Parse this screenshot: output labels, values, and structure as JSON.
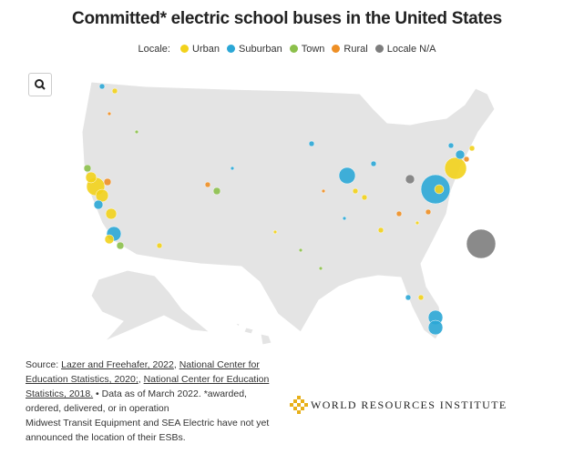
{
  "title": "Committed* electric school buses in the United States",
  "legend": {
    "label": "Locale:",
    "items": [
      {
        "name": "Urban",
        "color": "#f2d21b"
      },
      {
        "name": "Suburban",
        "color": "#2ba7d6"
      },
      {
        "name": "Town",
        "color": "#8cc04b"
      },
      {
        "name": "Rural",
        "color": "#ee8f25"
      },
      {
        "name": "Locale N/A",
        "color": "#7d7d7d"
      }
    ]
  },
  "source": {
    "prefix": "Source: ",
    "links": [
      "Lazer and Freehafer, 2022",
      "National Center for Education Statistics, 2020;",
      "National Center for Education Statistics, 2018."
    ],
    "separator": ", ",
    "note": " • Data as of March 2022. *awarded, ordered, delivered, or in operation",
    "footnote": "Midwest Transit Equipment and SEA Electric have not yet announced the location of their ESBs."
  },
  "logo": "WORLD RESOURCES INSTITUTE"
}
